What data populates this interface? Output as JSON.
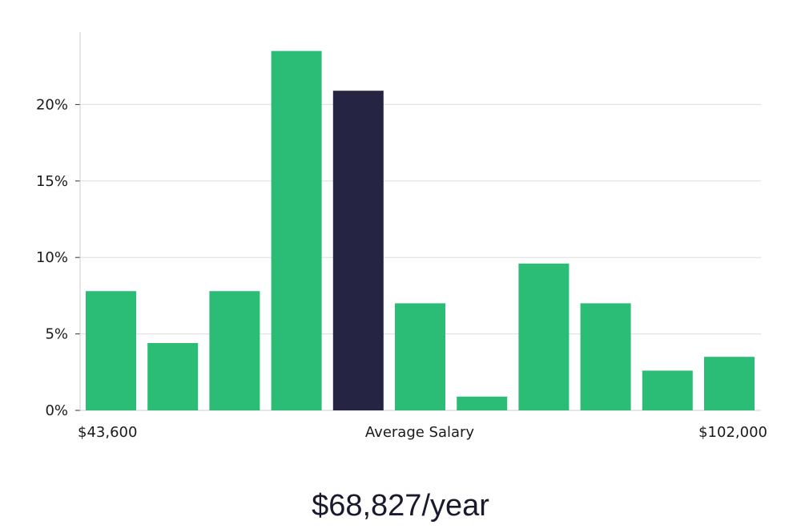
{
  "chart_data": {
    "type": "bar",
    "title": "",
    "y_tick_labels": [
      "0%",
      "5%",
      "10%",
      "15%",
      "20%"
    ],
    "y_ticks": [
      0,
      5,
      10,
      15,
      20
    ],
    "ylim": [
      0,
      25
    ],
    "grid": true,
    "values": [
      7.8,
      4.4,
      7.8,
      23.5,
      20.9,
      7.0,
      0.9,
      9.6,
      7.0,
      2.6,
      3.5
    ],
    "highlight_index": 4,
    "x_min_label": "$43,600",
    "x_center_label": "Average Salary",
    "x_max_label": "$102,000",
    "colors": {
      "bar": "#2bbd76",
      "highlight": "#262443",
      "grid": "#dddddd",
      "axis": "#cccccc"
    }
  },
  "salary_headline": "$68,827/year"
}
